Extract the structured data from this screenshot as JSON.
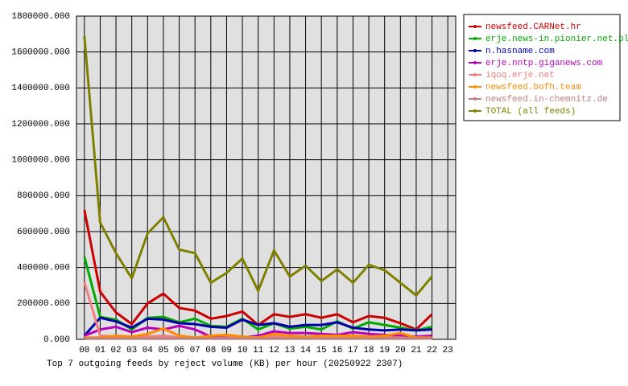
{
  "chart_data": {
    "type": "line",
    "title": "Top 7 outgoing feeds by reject volume (KB) per hour (20250922 2307)",
    "categories": [
      "00",
      "01",
      "02",
      "03",
      "04",
      "05",
      "06",
      "07",
      "08",
      "09",
      "10",
      "11",
      "12",
      "13",
      "14",
      "15",
      "16",
      "17",
      "18",
      "19",
      "20",
      "21",
      "22",
      "23"
    ],
    "ylim": [
      0,
      1800000
    ],
    "yticks": [
      {
        "value": 0,
        "label": "0.000"
      },
      {
        "value": 200000,
        "label": "200000.000"
      },
      {
        "value": 400000,
        "label": "400000.000"
      },
      {
        "value": 600000,
        "label": "600000.000"
      },
      {
        "value": 800000,
        "label": "800000.000"
      },
      {
        "value": 1000000,
        "label": "1000000.000"
      },
      {
        "value": 1200000,
        "label": "1200000.000"
      },
      {
        "value": 1400000,
        "label": "1400000.000"
      },
      {
        "value": 1600000,
        "label": "1600000.000"
      },
      {
        "value": 1800000,
        "label": "1800000.000"
      }
    ],
    "grid": true,
    "legend": "right",
    "series": [
      {
        "name": "newsfeed.CARNet.hr",
        "color": "#cc0000",
        "values": [
          720000,
          265000,
          150000,
          85000,
          200000,
          255000,
          175000,
          160000,
          115000,
          130000,
          155000,
          80000,
          140000,
          125000,
          140000,
          120000,
          140000,
          95000,
          130000,
          120000,
          90000,
          55000,
          140000,
          null
        ]
      },
      {
        "name": "erje.news-in.pionier.net.pl",
        "color": "#00aa00",
        "values": [
          460000,
          125000,
          110000,
          55000,
          120000,
          125000,
          95000,
          115000,
          75000,
          70000,
          115000,
          55000,
          90000,
          60000,
          70000,
          55000,
          100000,
          60000,
          95000,
          80000,
          65000,
          50000,
          70000,
          null
        ]
      },
      {
        "name": "n.hasname.com",
        "color": "#0000aa",
        "values": [
          20000,
          120000,
          100000,
          65000,
          115000,
          110000,
          90000,
          85000,
          70000,
          65000,
          110000,
          80000,
          90000,
          70000,
          80000,
          80000,
          95000,
          65000,
          55000,
          50000,
          55000,
          50000,
          55000,
          null
        ]
      },
      {
        "name": "erje.nntp.giganews.com",
        "color": "#bb00bb",
        "values": [
          20000,
          55000,
          70000,
          40000,
          65000,
          55000,
          75000,
          55000,
          15000,
          10000,
          10000,
          20000,
          45000,
          35000,
          35000,
          30000,
          25000,
          40000,
          30000,
          25000,
          20000,
          15000,
          20000,
          null
        ]
      },
      {
        "name": "iqoq.erje.net",
        "color": "#f08080",
        "values": [
          320000,
          20000,
          15000,
          10000,
          15000,
          20000,
          10000,
          10000,
          5000,
          10000,
          10000,
          10000,
          15000,
          10000,
          10000,
          10000,
          10000,
          10000,
          10000,
          10000,
          10000,
          5000,
          5000,
          null
        ]
      },
      {
        "name": "newsfeed.bofh.team",
        "color": "#ff8c00",
        "values": [
          10000,
          10000,
          20000,
          15000,
          30000,
          60000,
          20000,
          10000,
          20000,
          25000,
          15000,
          10000,
          30000,
          20000,
          15000,
          20000,
          20000,
          20000,
          15000,
          20000,
          35000,
          10000,
          10000,
          null
        ]
      },
      {
        "name": "newsfeed.in-chemnitz.de",
        "color": "#c08080",
        "values": [
          5000,
          5000,
          5000,
          5000,
          5000,
          5000,
          5000,
          5000,
          5000,
          5000,
          5000,
          5000,
          5000,
          5000,
          5000,
          5000,
          5000,
          5000,
          5000,
          5000,
          5000,
          5000,
          5000,
          null
        ]
      },
      {
        "name": "TOTAL (all feeds)",
        "color": "#808000",
        "values": [
          1690000,
          650000,
          480000,
          340000,
          590000,
          680000,
          500000,
          480000,
          315000,
          370000,
          450000,
          270000,
          495000,
          350000,
          410000,
          325000,
          390000,
          315000,
          415000,
          385000,
          315000,
          245000,
          350000,
          null
        ]
      }
    ]
  }
}
